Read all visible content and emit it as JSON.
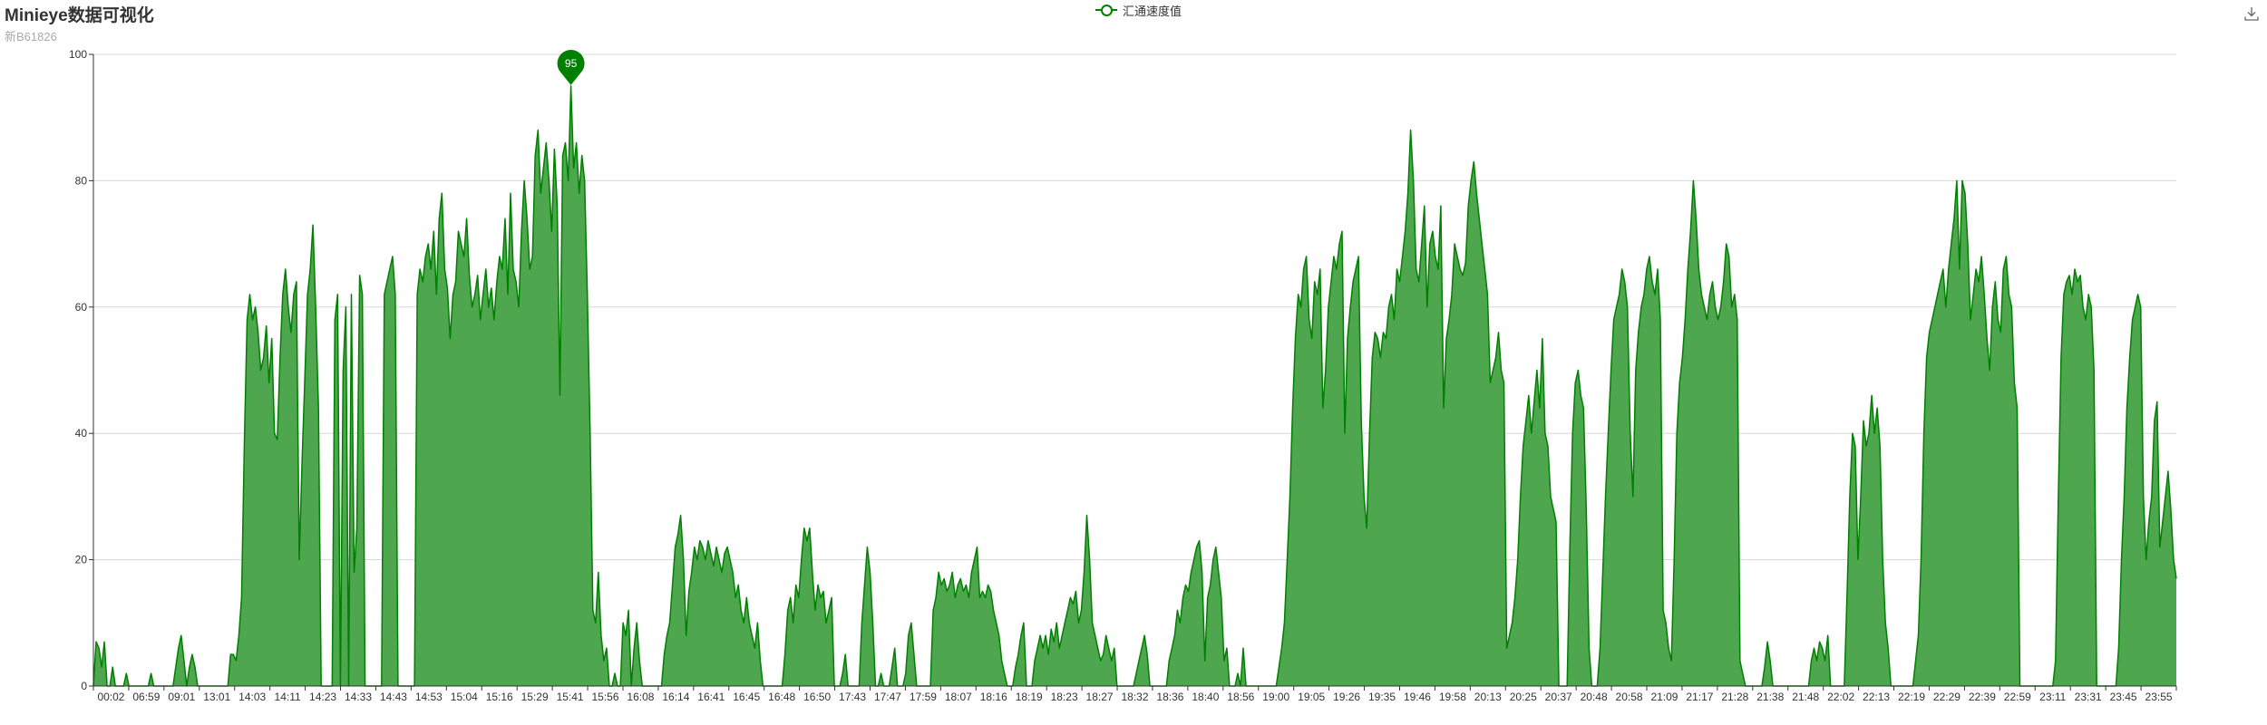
{
  "header": {
    "title": "Minieye数据可视化",
    "subtitle": "新B61826"
  },
  "legend": {
    "label": "汇通速度值",
    "color": "#008000"
  },
  "toolbox": {
    "icon": "download-icon"
  },
  "chart_data": {
    "type": "area",
    "title": "Minieye数据可视化",
    "subtitle": "新B61826",
    "xlabel": "",
    "ylabel": "",
    "ylim": [
      0,
      100
    ],
    "yticks": [
      0,
      20,
      40,
      60,
      80,
      100
    ],
    "grid": true,
    "legend_position": "top-center",
    "line_color": "#008000",
    "fill_color": "#4ea64e",
    "x_tick_labels": [
      "00:02",
      "06:59",
      "09:01",
      "13:01",
      "14:03",
      "14:11",
      "14:23",
      "14:33",
      "14:43",
      "14:53",
      "15:04",
      "15:16",
      "15:29",
      "15:41",
      "15:56",
      "16:08",
      "16:14",
      "16:41",
      "16:45",
      "16:48",
      "16:50",
      "17:43",
      "17:47",
      "17:59",
      "18:07",
      "18:16",
      "18:19",
      "18:23",
      "18:27",
      "18:32",
      "18:36",
      "18:40",
      "18:56",
      "19:00",
      "19:05",
      "19:26",
      "19:35",
      "19:46",
      "19:58",
      "20:13",
      "20:25",
      "20:37",
      "20:48",
      "20:58",
      "21:09",
      "21:17",
      "21:28",
      "21:38",
      "21:48",
      "22:02",
      "22:13",
      "22:19",
      "22:29",
      "22:39",
      "22:59",
      "23:11",
      "23:31",
      "23:45",
      "23:55"
    ],
    "series": [
      {
        "name": "汇通速度值",
        "values": [
          0,
          7,
          6,
          3,
          7,
          0,
          0,
          3,
          0,
          0,
          0,
          0,
          2,
          0,
          0,
          0,
          0,
          0,
          0,
          0,
          0,
          2,
          0,
          0,
          0,
          0,
          0,
          0,
          0,
          0,
          3,
          6,
          8,
          4,
          0,
          3,
          5,
          3,
          0,
          0,
          0,
          0,
          0,
          0,
          0,
          0,
          0,
          0,
          0,
          0,
          5,
          5,
          4,
          8,
          14,
          38,
          58,
          62,
          58,
          60,
          56,
          50,
          52,
          57,
          48,
          55,
          40,
          39,
          52,
          62,
          66,
          60,
          56,
          62,
          64,
          20,
          35,
          48,
          62,
          66,
          73,
          60,
          44,
          0,
          0,
          0,
          0,
          0,
          58,
          62,
          0,
          50,
          60,
          0,
          62,
          18,
          25,
          65,
          62,
          0,
          0,
          0,
          0,
          0,
          0,
          0,
          62,
          64,
          66,
          68,
          62,
          0,
          0,
          0,
          0,
          0,
          0,
          0,
          62,
          66,
          64,
          68,
          70,
          66,
          72,
          62,
          74,
          78,
          66,
          63,
          55,
          62,
          64,
          72,
          70,
          68,
          74,
          65,
          60,
          62,
          65,
          58,
          62,
          66,
          60,
          63,
          58,
          64,
          68,
          66,
          74,
          62,
          78,
          66,
          64,
          60,
          72,
          80,
          74,
          66,
          68,
          84,
          88,
          78,
          82,
          86,
          80,
          72,
          85,
          76,
          46,
          84,
          86,
          80,
          95,
          82,
          86,
          78,
          84,
          80,
          62,
          40,
          12,
          10,
          18,
          8,
          4,
          6,
          0,
          0,
          2,
          0,
          0,
          10,
          8,
          12,
          0,
          6,
          10,
          4,
          0,
          0,
          0,
          0,
          0,
          0,
          0,
          0,
          5,
          8,
          10,
          16,
          22,
          24,
          27,
          20,
          8,
          15,
          18,
          22,
          20,
          23,
          22,
          20,
          23,
          21,
          19,
          22,
          20,
          18,
          21,
          22,
          20,
          18,
          14,
          16,
          12,
          10,
          14,
          10,
          8,
          6,
          10,
          4,
          0,
          0,
          0,
          0,
          0,
          0,
          0,
          0,
          5,
          12,
          14,
          10,
          16,
          14,
          20,
          25,
          23,
          25,
          18,
          12,
          16,
          14,
          15,
          10,
          12,
          14,
          0,
          0,
          0,
          2,
          5,
          0,
          0,
          0,
          0,
          0,
          10,
          16,
          22,
          18,
          10,
          0,
          0,
          2,
          0,
          0,
          0,
          3,
          6,
          0,
          0,
          0,
          2,
          8,
          10,
          5,
          0,
          0,
          0,
          0,
          0,
          0,
          12,
          14,
          18,
          16,
          17,
          15,
          16,
          18,
          14,
          16,
          17,
          15,
          16,
          14,
          18,
          20,
          22,
          14,
          15,
          14,
          16,
          15,
          12,
          10,
          8,
          4,
          2,
          0,
          0,
          0,
          3,
          5,
          8,
          10,
          0,
          0,
          0,
          4,
          6,
          8,
          6,
          8,
          5,
          9,
          7,
          10,
          6,
          8,
          10,
          12,
          14,
          13,
          15,
          10,
          12,
          18,
          27,
          20,
          10,
          8,
          6,
          4,
          5,
          8,
          6,
          4,
          6,
          0,
          0,
          0,
          0,
          0,
          0,
          0,
          2,
          4,
          6,
          8,
          5,
          0,
          0,
          0,
          0,
          0,
          0,
          0,
          4,
          6,
          8,
          12,
          10,
          14,
          16,
          15,
          18,
          20,
          22,
          23,
          18,
          4,
          14,
          16,
          20,
          22,
          18,
          14,
          4,
          6,
          0,
          0,
          0,
          2,
          0,
          6,
          0,
          0,
          0,
          0,
          0,
          0,
          0,
          0,
          0,
          0,
          0,
          0,
          3,
          6,
          10,
          20,
          30,
          44,
          55,
          62,
          60,
          66,
          68,
          58,
          55,
          64,
          62,
          66,
          44,
          50,
          60,
          64,
          68,
          66,
          70,
          72,
          40,
          55,
          60,
          64,
          66,
          68,
          42,
          30,
          25,
          40,
          52,
          56,
          55,
          52,
          56,
          55,
          60,
          62,
          58,
          66,
          64,
          68,
          72,
          78,
          88,
          80,
          66,
          64,
          70,
          76,
          60,
          70,
          72,
          68,
          66,
          76,
          44,
          55,
          58,
          62,
          70,
          68,
          66,
          65,
          67,
          76,
          80,
          83,
          78,
          74,
          70,
          66,
          62,
          48,
          50,
          52,
          56,
          50,
          48,
          6,
          8,
          10,
          14,
          20,
          30,
          38,
          42,
          46,
          40,
          45,
          50,
          44,
          55,
          40,
          38,
          30,
          28,
          26,
          0,
          0,
          0,
          0,
          22,
          40,
          48,
          50,
          46,
          44,
          28,
          6,
          0,
          0,
          0,
          6,
          18,
          30,
          40,
          50,
          58,
          60,
          62,
          66,
          64,
          60,
          40,
          30,
          50,
          56,
          60,
          62,
          66,
          68,
          64,
          62,
          66,
          58,
          12,
          10,
          6,
          4,
          20,
          40,
          48,
          52,
          58,
          66,
          72,
          80,
          74,
          66,
          62,
          60,
          58,
          62,
          64,
          60,
          58,
          60,
          64,
          70,
          68,
          60,
          62,
          58,
          4,
          2,
          0,
          0,
          0,
          0,
          0,
          0,
          0,
          3,
          7,
          4,
          0,
          0,
          0,
          0,
          0,
          0,
          0,
          0,
          0,
          0,
          0,
          0,
          0,
          0,
          4,
          6,
          4,
          7,
          6,
          4,
          8,
          0,
          0,
          0,
          0,
          0,
          0,
          14,
          30,
          40,
          38,
          20,
          30,
          42,
          38,
          40,
          46,
          40,
          44,
          38,
          20,
          10,
          6,
          0,
          0,
          0,
          0,
          0,
          0,
          0,
          0,
          0,
          4,
          8,
          20,
          40,
          52,
          56,
          58,
          60,
          62,
          64,
          66,
          60,
          66,
          70,
          74,
          80,
          66,
          80,
          78,
          70,
          58,
          62,
          66,
          64,
          68,
          62,
          55,
          50,
          60,
          64,
          58,
          56,
          66,
          68,
          62,
          60,
          48,
          44,
          0,
          0,
          0,
          0,
          0,
          0,
          0,
          0,
          0,
          0,
          0,
          0,
          0,
          4,
          30,
          52,
          62,
          64,
          65,
          62,
          66,
          64,
          65,
          60,
          58,
          62,
          60,
          50,
          0,
          0,
          0,
          0,
          0,
          0,
          0,
          0,
          6,
          20,
          30,
          44,
          52,
          58,
          60,
          62,
          60,
          30,
          20,
          26,
          30,
          42,
          45,
          22,
          26,
          30,
          34,
          28,
          20,
          17
        ]
      }
    ],
    "markpoint": {
      "label": "95",
      "value": 95
    }
  }
}
